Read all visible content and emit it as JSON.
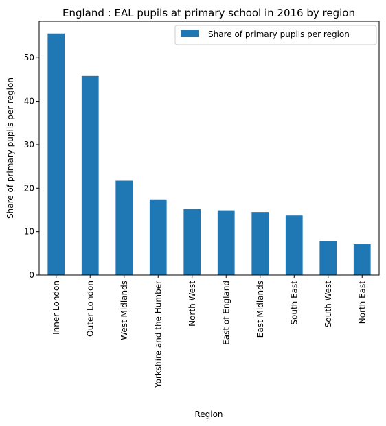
{
  "chart_data": {
    "type": "bar",
    "title": "England : EAL pupils at primary school in 2016 by region",
    "xlabel": "Region",
    "ylabel": "Share of primary pupils per region",
    "categories": [
      "Inner London",
      "Outer London",
      "West Midlands",
      "Yorkshire and the Humber",
      "North West",
      "East of England",
      "East Midlands",
      "South East",
      "South West",
      "North East"
    ],
    "series": [
      {
        "name": "Share of primary pupils per region",
        "color": "#1f77b4",
        "values": [
          55.6,
          45.8,
          21.7,
          17.4,
          15.2,
          14.9,
          14.5,
          13.7,
          7.8,
          7.1
        ]
      }
    ],
    "ylim": [
      0,
      58.4
    ],
    "yticks": [
      "0",
      "10",
      "20",
      "30",
      "40",
      "50"
    ],
    "legend_position": "top-right",
    "grid": false
  }
}
